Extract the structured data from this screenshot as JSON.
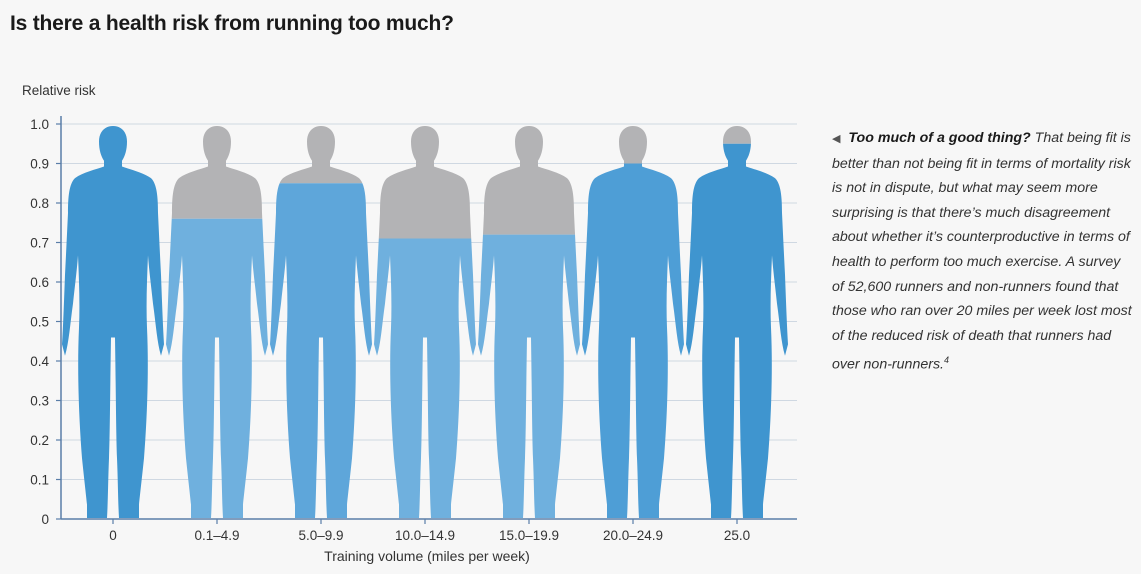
{
  "title": "Is there a health risk from running too much?",
  "chart_data": {
    "type": "bar",
    "ylabel": "Relative risk",
    "xlabel": "Training volume (miles per week)",
    "ylim": [
      0,
      1.0
    ],
    "yticks": [
      "0",
      "0.1",
      "0.2",
      "0.3",
      "0.4",
      "0.5",
      "0.6",
      "0.7",
      "0.8",
      "0.9",
      "1.0"
    ],
    "categories": [
      "0",
      "0.1–4.9",
      "5.0–9.9",
      "10.0–14.9",
      "15.0–19.9",
      "20.0–24.9",
      "25.0"
    ],
    "values": [
      1.0,
      0.76,
      0.85,
      0.71,
      0.72,
      0.9,
      0.95
    ],
    "colors": {
      "fill": [
        "#3f95cf",
        "#6fb0de",
        "#5ea6da",
        "#6fb0de",
        "#6fb0de",
        "#4e9ed6",
        "#3f95cf"
      ],
      "remainder": "#b3b3b5",
      "axis": "#5a7ea8",
      "grid": "#cfd8e2"
    }
  },
  "sidebar_note": {
    "arrow": "◀",
    "lead": "Too much of a good thing?",
    "body": "That being fit is better than not being fit in terms of mortality risk is not in dispute, but what may seem more surprising is that there’s much disagreement about whether it’s counterproductive in terms of health to perform too much exercise. A survey of 52,600 runners and non-runners found that those who ran over 20 miles per week lost most of the reduced risk of death that runners had over non-runners.",
    "footnote": "4"
  }
}
